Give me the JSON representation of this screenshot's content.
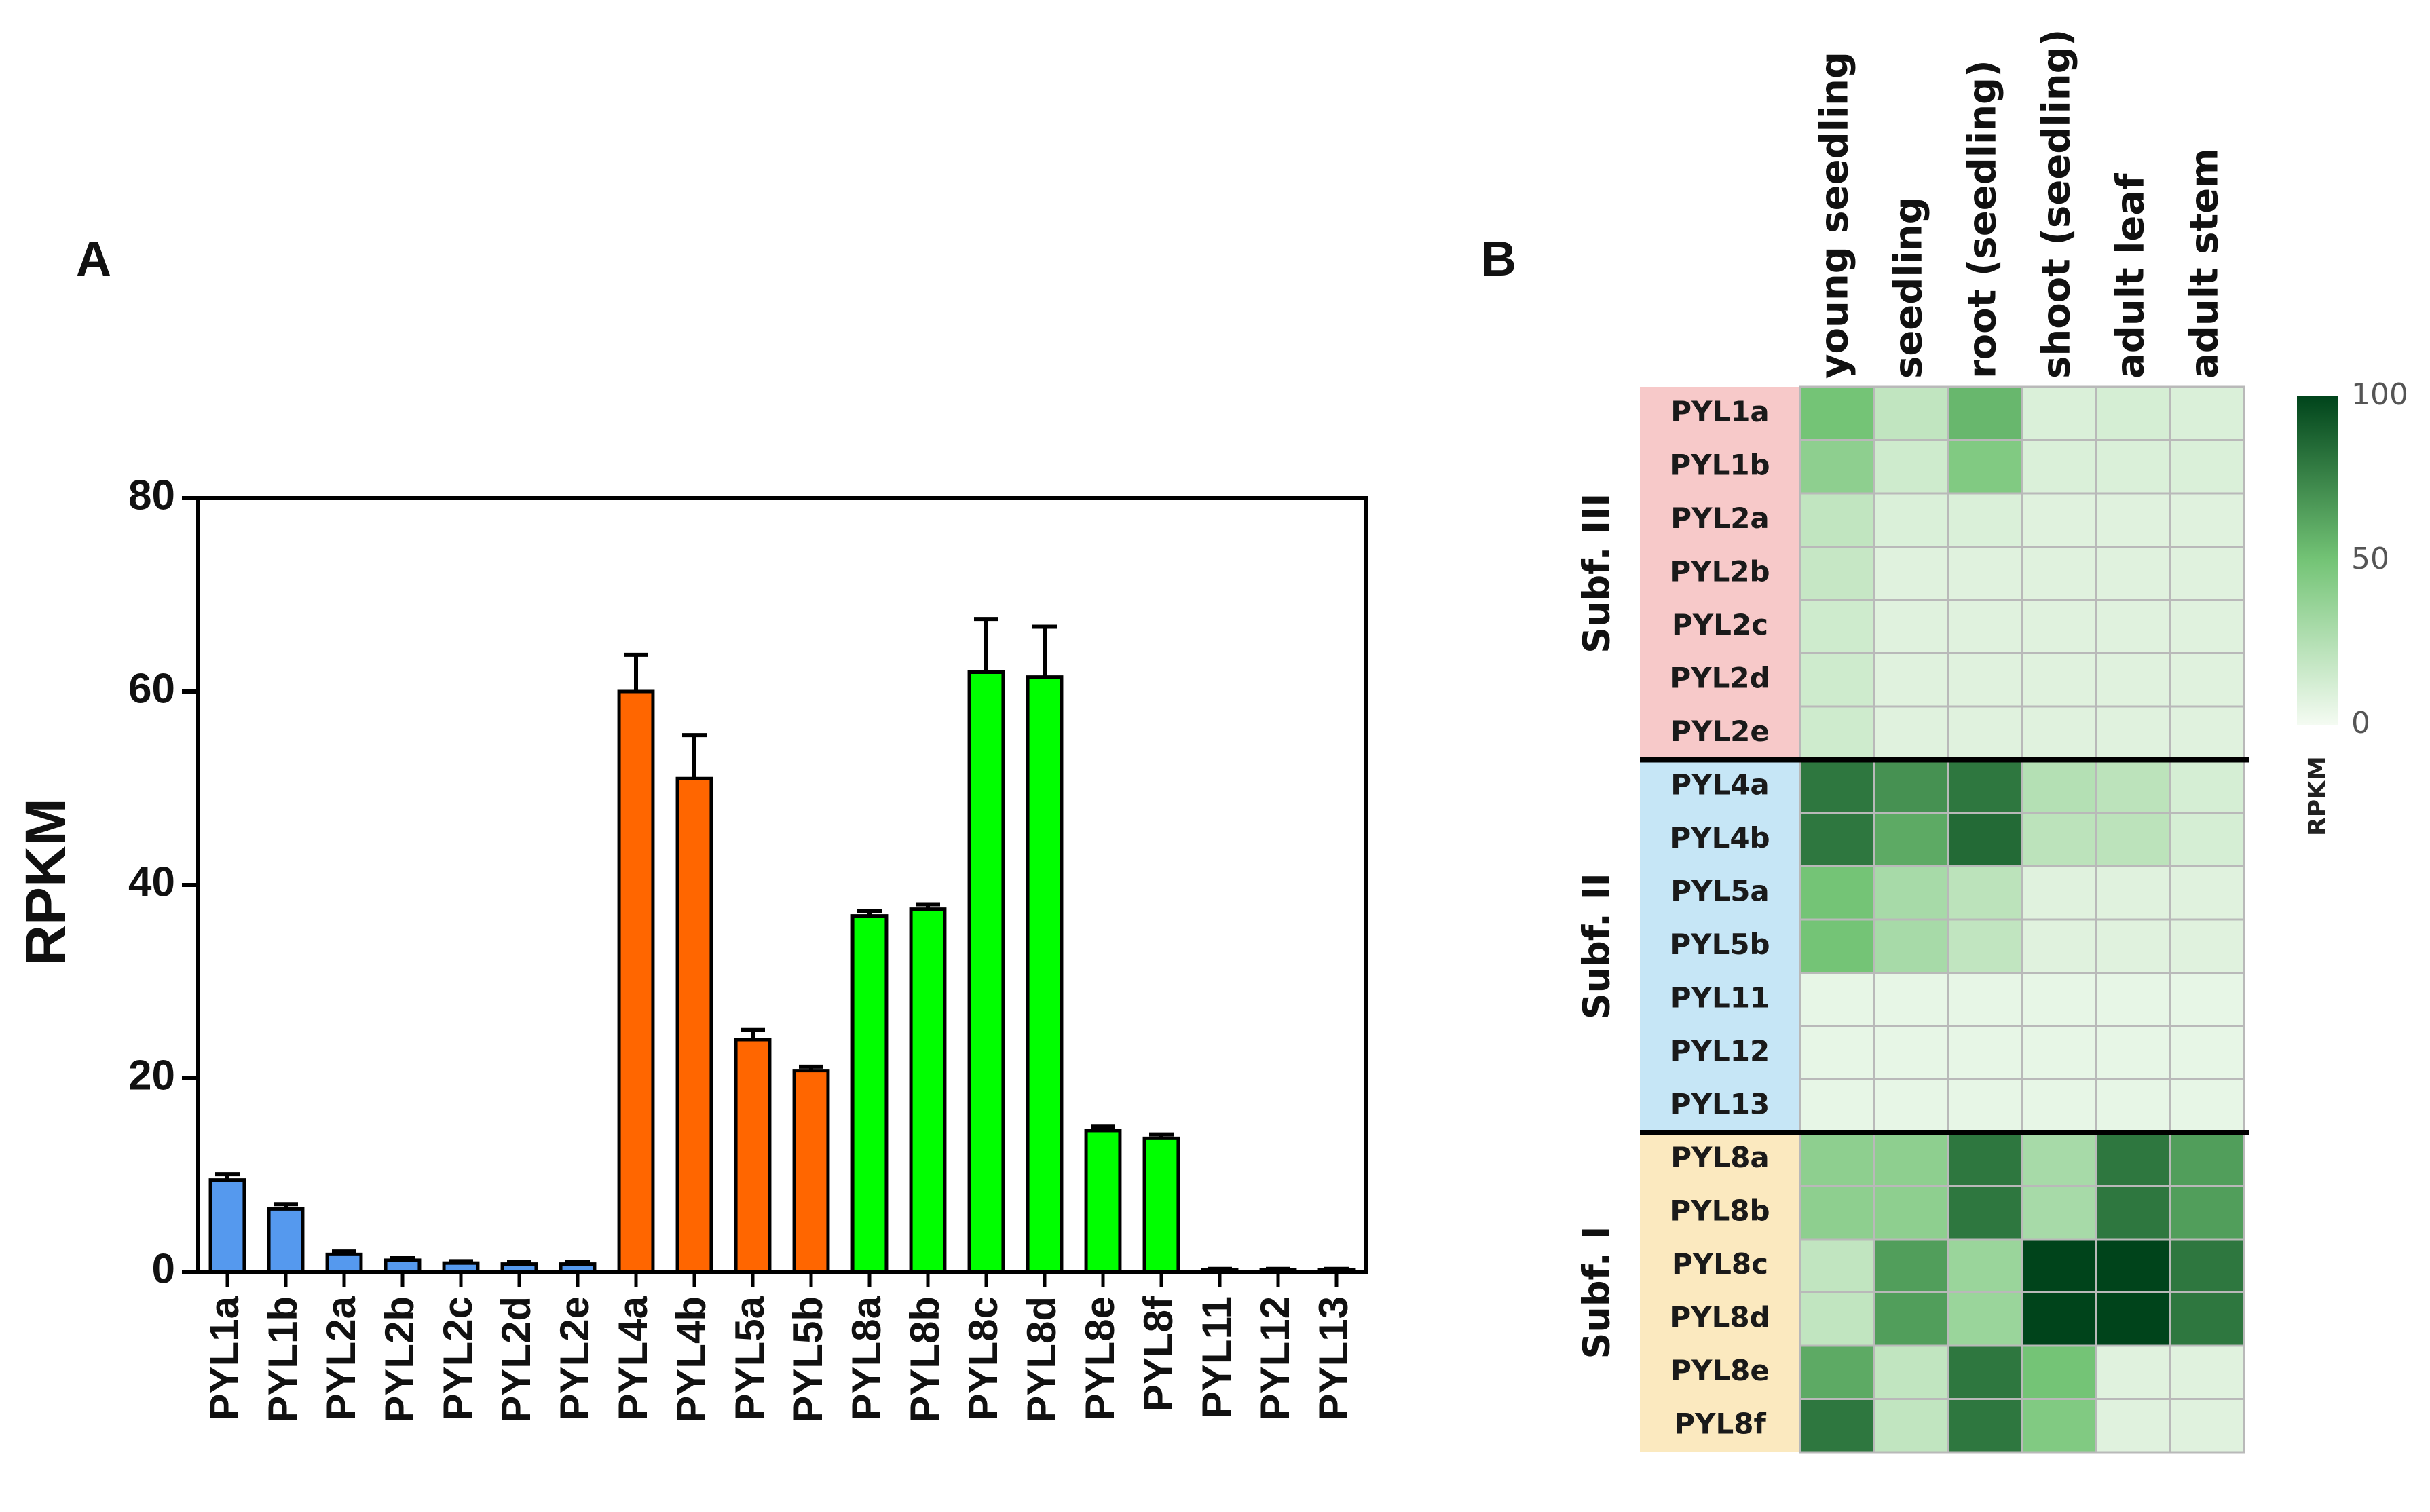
{
  "panels": {
    "a": "A",
    "b": "B"
  },
  "colors": {
    "subf_I": "#00ff00",
    "subf_II": "#ff6600",
    "subf_III": "#5599ee",
    "heat_low": "#f4fbf2",
    "heat_high": "#00441b",
    "band_III": "#f7c9c9",
    "band_II": "#c6e6f6",
    "band_I": "#fbe9bf"
  },
  "chart_data": [
    {
      "type": "bar",
      "panel": "A",
      "ylabel": "RPKM",
      "ylim": [
        0,
        80
      ],
      "yticks": [
        "0",
        "20",
        "40",
        "60",
        "80"
      ],
      "categories": [
        "PYL1a",
        "PYL1b",
        "PYL2a",
        "PYL2b",
        "PYL2c",
        "PYL2d",
        "PYL2e",
        "PYL4a",
        "PYL4b",
        "PYL5a",
        "PYL5b",
        "PYL8a",
        "PYL8b",
        "PYL8c",
        "PYL8d",
        "PYL8e",
        "PYL8f",
        "PYL11",
        "PYL12",
        "PYL13"
      ],
      "values": [
        9.5,
        6.5,
        1.8,
        1.2,
        0.9,
        0.8,
        0.8,
        60,
        51,
        24,
        20.8,
        36.8,
        37.5,
        62,
        61.5,
        14.6,
        13.8,
        0.2,
        0.2,
        0.2
      ],
      "errors": [
        0.6,
        0.5,
        0.3,
        0.2,
        0.2,
        0.2,
        0.2,
        3.8,
        4.5,
        1.0,
        0.4,
        0.5,
        0.5,
        5.5,
        5.2,
        0.4,
        0.4,
        0.1,
        0.1,
        0.1
      ],
      "groups": [
        "subf_III",
        "subf_III",
        "subf_III",
        "subf_III",
        "subf_III",
        "subf_III",
        "subf_III",
        "subf_II",
        "subf_II",
        "subf_II",
        "subf_II",
        "subf_I",
        "subf_I",
        "subf_I",
        "subf_I",
        "subf_I",
        "subf_I",
        "subf_II",
        "subf_II",
        "subf_II"
      ],
      "grid": false
    },
    {
      "type": "heatmap",
      "panel": "B",
      "columns": [
        "young seedling",
        "seedling",
        "root (seedling)",
        "shoot (seedling)",
        "adult leaf",
        "adult stem"
      ],
      "row_groups": [
        {
          "label": "Subf. III",
          "band": "band_III",
          "rows": [
            "PYL1a",
            "PYL1b",
            "PYL2a",
            "PYL2b",
            "PYL2c",
            "PYL2d",
            "PYL2e"
          ]
        },
        {
          "label": "Subf. II",
          "band": "band_II",
          "rows": [
            "PYL4a",
            "PYL4b",
            "PYL5a",
            "PYL5b",
            "PYL11",
            "PYL12",
            "PYL13"
          ]
        },
        {
          "label": "Subf. I",
          "band": "band_I",
          "rows": [
            "PYL8a",
            "PYL8b",
            "PYL8c",
            "PYL8d",
            "PYL8e",
            "PYL8f"
          ]
        }
      ],
      "values": [
        [
          50,
          20,
          55,
          10,
          12,
          10
        ],
        [
          40,
          15,
          45,
          10,
          10,
          10
        ],
        [
          20,
          10,
          10,
          8,
          8,
          8
        ],
        [
          18,
          8,
          8,
          8,
          8,
          8
        ],
        [
          15,
          8,
          8,
          8,
          8,
          8
        ],
        [
          15,
          8,
          8,
          8,
          8,
          8
        ],
        [
          15,
          8,
          8,
          8,
          8,
          8
        ],
        [
          80,
          70,
          80,
          25,
          22,
          12
        ],
        [
          80,
          60,
          85,
          22,
          22,
          12
        ],
        [
          50,
          30,
          22,
          8,
          8,
          8
        ],
        [
          50,
          30,
          20,
          8,
          8,
          8
        ],
        [
          5,
          5,
          5,
          5,
          5,
          5
        ],
        [
          5,
          5,
          5,
          5,
          5,
          5
        ],
        [
          5,
          5,
          5,
          5,
          5,
          5
        ],
        [
          40,
          40,
          80,
          30,
          80,
          65
        ],
        [
          40,
          40,
          80,
          30,
          80,
          65
        ],
        [
          20,
          65,
          35,
          100,
          100,
          80
        ],
        [
          20,
          65,
          35,
          100,
          100,
          80
        ],
        [
          60,
          20,
          80,
          50,
          8,
          8
        ],
        [
          80,
          20,
          80,
          45,
          8,
          8
        ]
      ],
      "colorbar": {
        "label": "RPKM",
        "range": [
          0,
          100
        ],
        "ticks": [
          "0",
          "50",
          "100"
        ]
      }
    }
  ]
}
